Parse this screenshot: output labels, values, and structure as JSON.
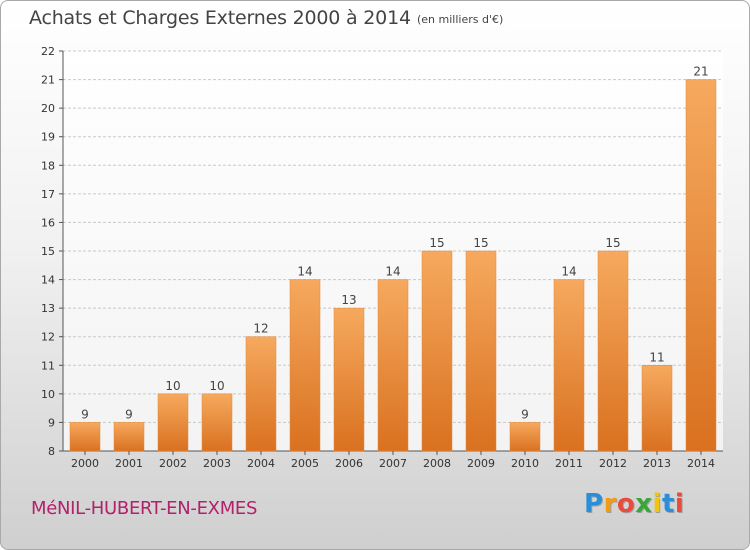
{
  "header": {
    "title": "Achats et Charges Externes 2000 à 2014",
    "subtitle": "(en milliers d'€)"
  },
  "footer": {
    "commune": "MéNIL-HUBERT-EN-EXMES",
    "logo_letters": [
      "P",
      "r",
      "o",
      "x",
      "i",
      "t",
      "i"
    ],
    "logo_colors": [
      "#2a8fd6",
      "#f39c12",
      "#e74c3c",
      "#3aa63a",
      "#f1c40f",
      "#2a8fd6",
      "#e74c3c"
    ]
  },
  "chart_data": {
    "type": "bar",
    "title": "Achats et Charges Externes 2000 à 2014",
    "subtitle": "(en milliers d'€)",
    "categories": [
      "2000",
      "2001",
      "2002",
      "2003",
      "2004",
      "2005",
      "2006",
      "2007",
      "2008",
      "2009",
      "2010",
      "2011",
      "2012",
      "2013",
      "2014"
    ],
    "values": [
      9,
      9,
      10,
      10,
      12,
      14,
      13,
      14,
      15,
      15,
      9,
      14,
      15,
      11,
      21
    ],
    "ylim": [
      8,
      22
    ],
    "yticks": [
      8,
      9,
      10,
      11,
      12,
      13,
      14,
      15,
      16,
      17,
      18,
      19,
      20,
      21,
      22
    ],
    "grid": true,
    "legend": "none",
    "bar_color_top": "#f6a95e",
    "bar_color_bottom": "#d97120"
  }
}
